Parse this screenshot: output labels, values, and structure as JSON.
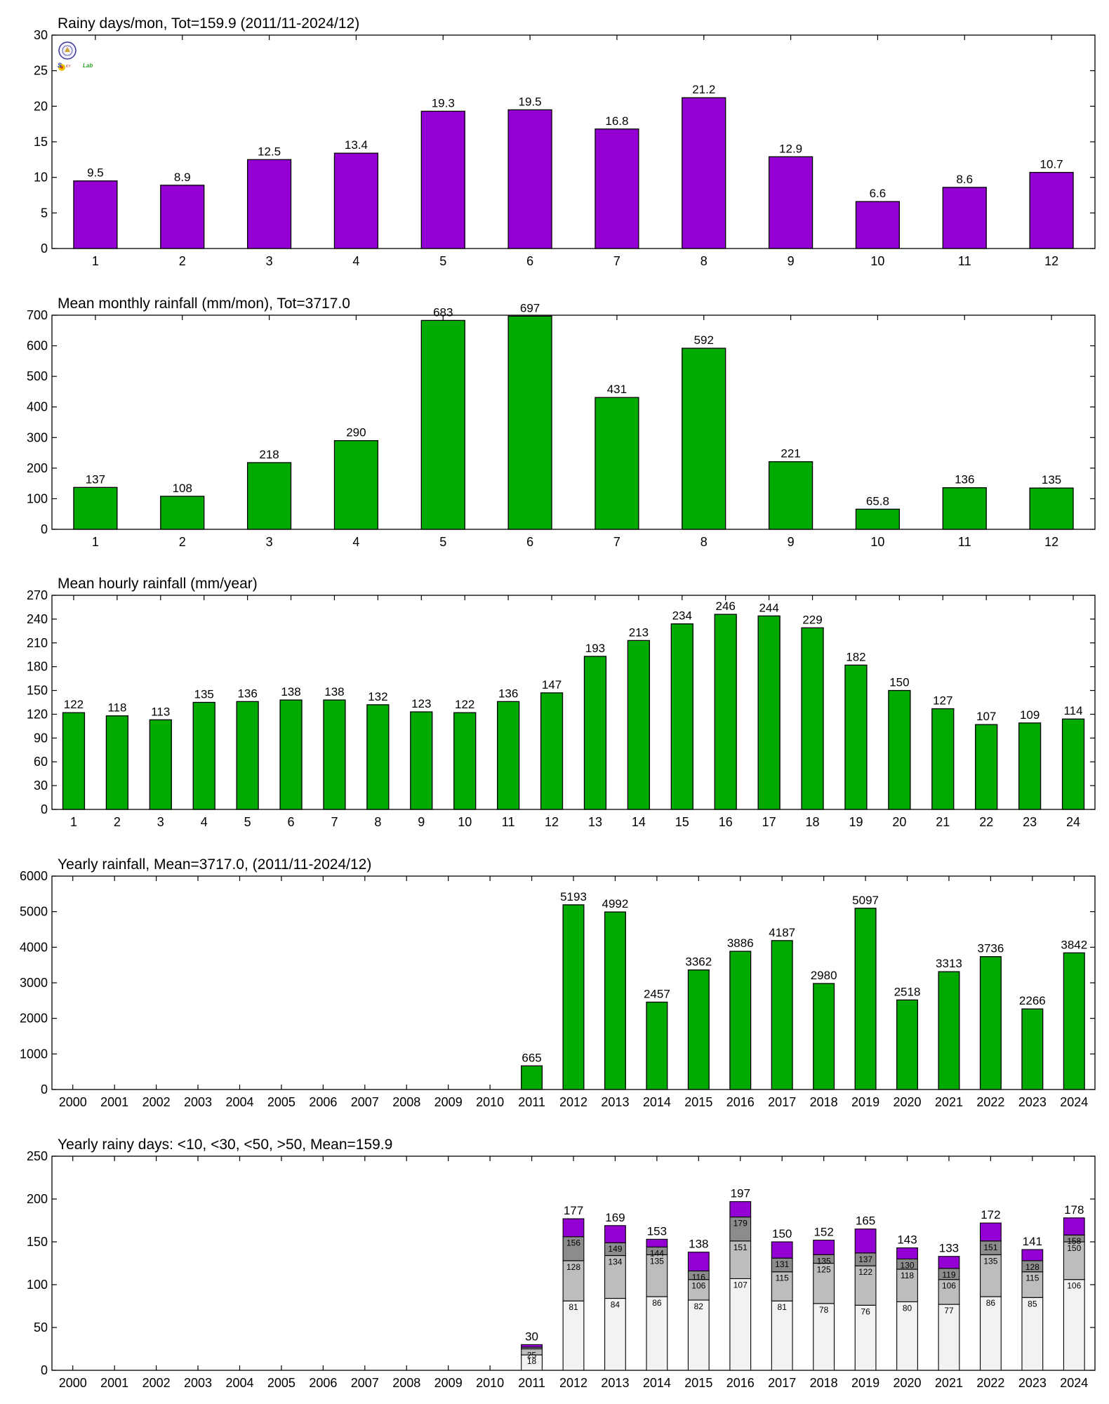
{
  "figure": {
    "background": "#ffffff"
  },
  "colors": {
    "purple": "#9400D3",
    "green": "#00AA00",
    "lightest": "#F2F2F2",
    "light": "#BDBDBD",
    "mid": "#8C8C8C"
  },
  "logo": {
    "icon": "lab-logo-seal",
    "text": "SKY Lab"
  },
  "chart_data": [
    {
      "id": "rainy-days",
      "type": "bar",
      "title": "Rainy days/mon, Tot=159.9 (2011/11-2024/12)",
      "categories": [
        "1",
        "2",
        "3",
        "4",
        "5",
        "6",
        "7",
        "8",
        "9",
        "10",
        "11",
        "12"
      ],
      "values": [
        9.5,
        8.9,
        12.5,
        13.4,
        19.3,
        19.5,
        16.8,
        21.2,
        12.9,
        6.6,
        8.6,
        10.7
      ],
      "labels": [
        "9.5",
        "8.9",
        "12.5",
        "13.4",
        "19.3",
        "19.5",
        "16.8",
        "21.2",
        "12.9",
        "6.6",
        "8.6",
        "10.7"
      ],
      "ylim": [
        0,
        30
      ],
      "yticks": [
        "0",
        "5",
        "10",
        "15",
        "20",
        "25",
        "30"
      ],
      "color": "#9400D3",
      "grid": false
    },
    {
      "id": "monthly-rainfall",
      "type": "bar",
      "title": "Mean monthly rainfall (mm/mon), Tot=3717.0",
      "categories": [
        "1",
        "2",
        "3",
        "4",
        "5",
        "6",
        "7",
        "8",
        "9",
        "10",
        "11",
        "12"
      ],
      "values": [
        137,
        108,
        218,
        290,
        683,
        697,
        431,
        592,
        221,
        65.8,
        136,
        135
      ],
      "labels": [
        "137",
        "108",
        "218",
        "290",
        "683",
        "697",
        "431",
        "592",
        "221",
        "65.8",
        "136",
        "135"
      ],
      "ylim": [
        0,
        700
      ],
      "yticks": [
        "0",
        "100",
        "200",
        "300",
        "400",
        "500",
        "600",
        "700"
      ],
      "color": "#00AA00",
      "grid": false
    },
    {
      "id": "hourly-rainfall",
      "type": "bar",
      "title": "Mean hourly rainfall (mm/year)",
      "categories": [
        "1",
        "2",
        "3",
        "4",
        "5",
        "6",
        "7",
        "8",
        "9",
        "10",
        "11",
        "12",
        "13",
        "14",
        "15",
        "16",
        "17",
        "18",
        "19",
        "20",
        "21",
        "22",
        "23",
        "24"
      ],
      "values": [
        122,
        118,
        113,
        135,
        136,
        138,
        138,
        132,
        123,
        122,
        136,
        147,
        193,
        213,
        234,
        246,
        244,
        229,
        182,
        150,
        127,
        107,
        109,
        114
      ],
      "labels": [
        "122",
        "118",
        "113",
        "135",
        "136",
        "138",
        "138",
        "132",
        "123",
        "122",
        "136",
        "147",
        "193",
        "213",
        "234",
        "246",
        "244",
        "229",
        "182",
        "150",
        "127",
        "107",
        "109",
        "114"
      ],
      "ylim": [
        0,
        270
      ],
      "yticks": [
        "0",
        "30",
        "60",
        "90",
        "120",
        "150",
        "180",
        "210",
        "240",
        "270"
      ],
      "color": "#00AA00",
      "grid": false
    },
    {
      "id": "yearly-rainfall",
      "type": "bar",
      "title": "Yearly rainfall, Mean=3717.0, (2011/11-2024/12)",
      "categories": [
        "2000",
        "2001",
        "2002",
        "2003",
        "2004",
        "2005",
        "2006",
        "2007",
        "2008",
        "2009",
        "2010",
        "2011",
        "2012",
        "2013",
        "2014",
        "2015",
        "2016",
        "2017",
        "2018",
        "2019",
        "2020",
        "2021",
        "2022",
        "2023",
        "2024"
      ],
      "values": [
        null,
        null,
        null,
        null,
        null,
        null,
        null,
        null,
        null,
        null,
        null,
        665,
        5193,
        4992,
        2457,
        3362,
        3886,
        4187,
        2980,
        5097,
        2518,
        3313,
        3736,
        2266,
        3842
      ],
      "labels": [
        "",
        "",
        "",
        "",
        "",
        "",
        "",
        "",
        "",
        "",
        "",
        "665",
        "5193",
        "4992",
        "2457",
        "3362",
        "3886",
        "4187",
        "2980",
        "5097",
        "2518",
        "3313",
        "3736",
        "2266",
        "3842"
      ],
      "ylim": [
        0,
        6000
      ],
      "yticks": [
        "0",
        "1000",
        "2000",
        "3000",
        "4000",
        "5000",
        "6000"
      ],
      "color": "#00AA00",
      "grid": false
    },
    {
      "id": "yearly-rainy-days",
      "type": "bar",
      "stacked": true,
      "title": "Yearly rainy days: <10, <30, <50, >50, Mean=159.9",
      "categories": [
        "2000",
        "2001",
        "2002",
        "2003",
        "2004",
        "2005",
        "2006",
        "2007",
        "2008",
        "2009",
        "2010",
        "2011",
        "2012",
        "2013",
        "2014",
        "2015",
        "2016",
        "2017",
        "2018",
        "2019",
        "2020",
        "2021",
        "2022",
        "2023",
        "2024"
      ],
      "cumulative": [
        null,
        null,
        null,
        null,
        null,
        null,
        null,
        null,
        null,
        null,
        null,
        [
          18,
          25,
          27,
          30
        ],
        [
          81,
          128,
          156,
          177
        ],
        [
          84,
          134,
          149,
          169
        ],
        [
          86,
          135,
          144,
          153
        ],
        [
          82,
          106,
          116,
          138
        ],
        [
          107,
          151,
          179,
          197
        ],
        [
          81,
          115,
          131,
          150
        ],
        [
          78,
          125,
          135,
          152
        ],
        [
          76,
          122,
          137,
          165
        ],
        [
          80,
          118,
          130,
          143
        ],
        [
          77,
          106,
          119,
          133
        ],
        [
          86,
          135,
          151,
          172
        ],
        [
          85,
          115,
          128,
          141
        ],
        [
          106,
          150,
          158,
          178
        ]
      ],
      "segment_labels": [
        null,
        null,
        null,
        null,
        null,
        null,
        null,
        null,
        null,
        null,
        null,
        [
          "18",
          "25",
          ""
        ],
        [
          "81",
          "128",
          "156"
        ],
        [
          "84",
          "134",
          "149"
        ],
        [
          "86",
          "135",
          "144"
        ],
        [
          "82",
          "106",
          "116"
        ],
        [
          "107",
          "151",
          "179"
        ],
        [
          "81",
          "115",
          "131"
        ],
        [
          "78",
          "125",
          "135"
        ],
        [
          "76",
          "122",
          "137"
        ],
        [
          "80",
          "118",
          "130"
        ],
        [
          "77",
          "106",
          "119"
        ],
        [
          "86",
          "135",
          "151"
        ],
        [
          "85",
          "115",
          "128"
        ],
        [
          "106",
          "150",
          "158"
        ]
      ],
      "labels": [
        "",
        "",
        "",
        "",
        "",
        "",
        "",
        "",
        "",
        "",
        "",
        "30",
        "177",
        "169",
        "153",
        "138",
        "197",
        "150",
        "152",
        "165",
        "143",
        "133",
        "172",
        "141",
        "178"
      ],
      "ylim": [
        0,
        250
      ],
      "yticks": [
        "0",
        "50",
        "100",
        "150",
        "200",
        "250"
      ],
      "colors": [
        "#F2F2F2",
        "#BDBDBD",
        "#8C8C8C",
        "#9400D3"
      ],
      "grid": false
    }
  ]
}
